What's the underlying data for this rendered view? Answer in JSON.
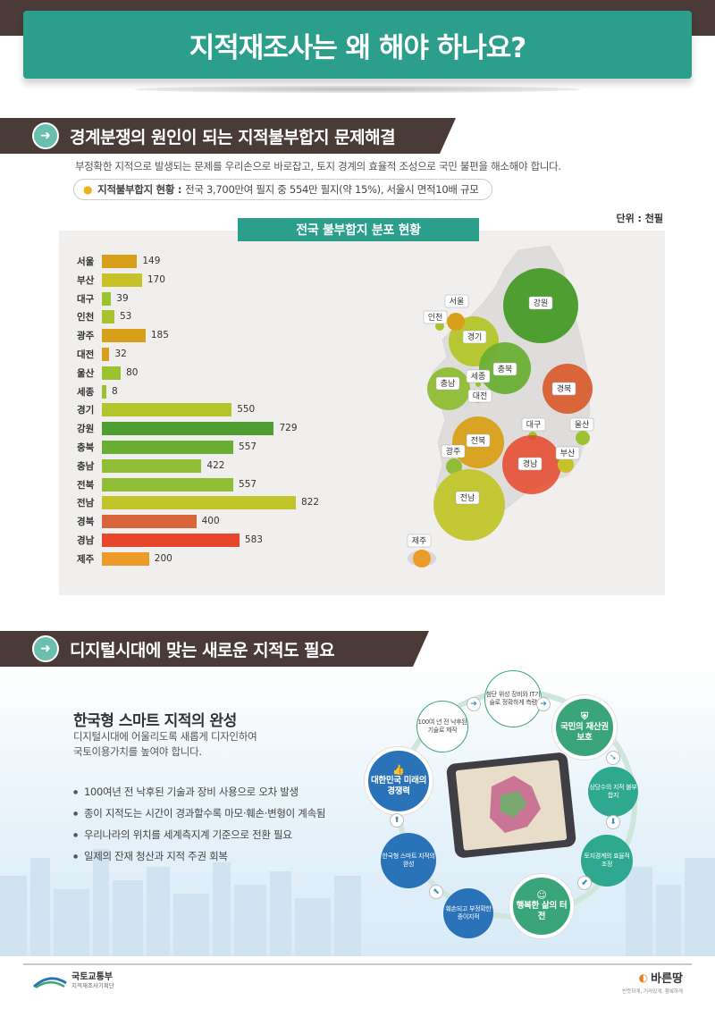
{
  "title": "지적재조사는 왜 해야 하나요?",
  "section1": {
    "heading": "경계분쟁의 원인이 되는 지적불부합지 문제해결",
    "description": "부정확한 지적으로 발생되는 문제를 우리손으로 바로잡고, 토지 경계의 효율적 조성으로 국민 불편을 해소해야 합니다.",
    "status_label": "지적불부합지 현황 :",
    "status_text": "전국 3,700만여 필지 중 554만 필지(약 15%), 서울시 면적10배 규모",
    "unit": "단위 : 천필"
  },
  "chart_data": {
    "type": "bar",
    "title": "전국 불부합지 분포 현황",
    "categories": [
      "서울",
      "부산",
      "대구",
      "인천",
      "광주",
      "대전",
      "울산",
      "세종",
      "경기",
      "강원",
      "충북",
      "충남",
      "전북",
      "전남",
      "경북",
      "경남",
      "제주"
    ],
    "values": [
      149,
      170,
      39,
      53,
      185,
      32,
      80,
      8,
      550,
      729,
      557,
      422,
      557,
      822,
      400,
      583,
      200
    ],
    "colors": [
      "#d8a01a",
      "#c8c22a",
      "#9cc32f",
      "#a9c32f",
      "#d8a01a",
      "#d8a01a",
      "#9cc32f",
      "#9cc32f",
      "#b4c42a",
      "#4f9e32",
      "#6aae35",
      "#8fbd35",
      "#8fbd35",
      "#c1c52a",
      "#d8663a",
      "#e8462c",
      "#ec9a28"
    ]
  },
  "map_labels": [
    "서울",
    "인천",
    "강원",
    "경기",
    "충북",
    "세종",
    "충남",
    "대전",
    "경북",
    "대구",
    "울산",
    "전북",
    "광주",
    "경남",
    "부산",
    "전남",
    "제주"
  ],
  "section2": {
    "heading": "디지털시대에 맞는 새로운 지적도 필요",
    "smart_title": "한국형 스마트 지적의 완성",
    "smart_desc_line1": "디지털시대에 어울리도록 새롭게 디자인하여",
    "smart_desc_line2": "국토이용가치를 높여야 합니다.",
    "bullets": [
      "100여년 전 낙후된 기술과 장비 사용으로 오차 발생",
      "종이 지적도는 시간이 경과할수록 마모·훼손·변형이 계속됨",
      "우리나라의 위치를 세계측지계 기준으로 전환 필요",
      "일제의 잔재 청산과 지적 주권 회복"
    ],
    "cycle": {
      "n1": "100여 년 전 낙후된 기술로 제작",
      "n2": "첨단 위성 장비와 IT기술로 정확하게 측량",
      "n3": "국민의 재산권 보호",
      "n4": "상당수의 지적 불부합지",
      "n5": "토지경계의 효율적 조정",
      "n6": "행복한 삶의 터전",
      "n7": "훼손되고 부정확한 종이지적",
      "n8": "한국형 스마트 지적의 완성",
      "n9": "대한민국 미래의 경쟁력"
    }
  },
  "footer": {
    "org_name": "국토교통부",
    "org_sub": "지적재조사기획단",
    "brand": "바른땅",
    "brand_tag": "반듯하게, 기라있게, 행복하게"
  }
}
